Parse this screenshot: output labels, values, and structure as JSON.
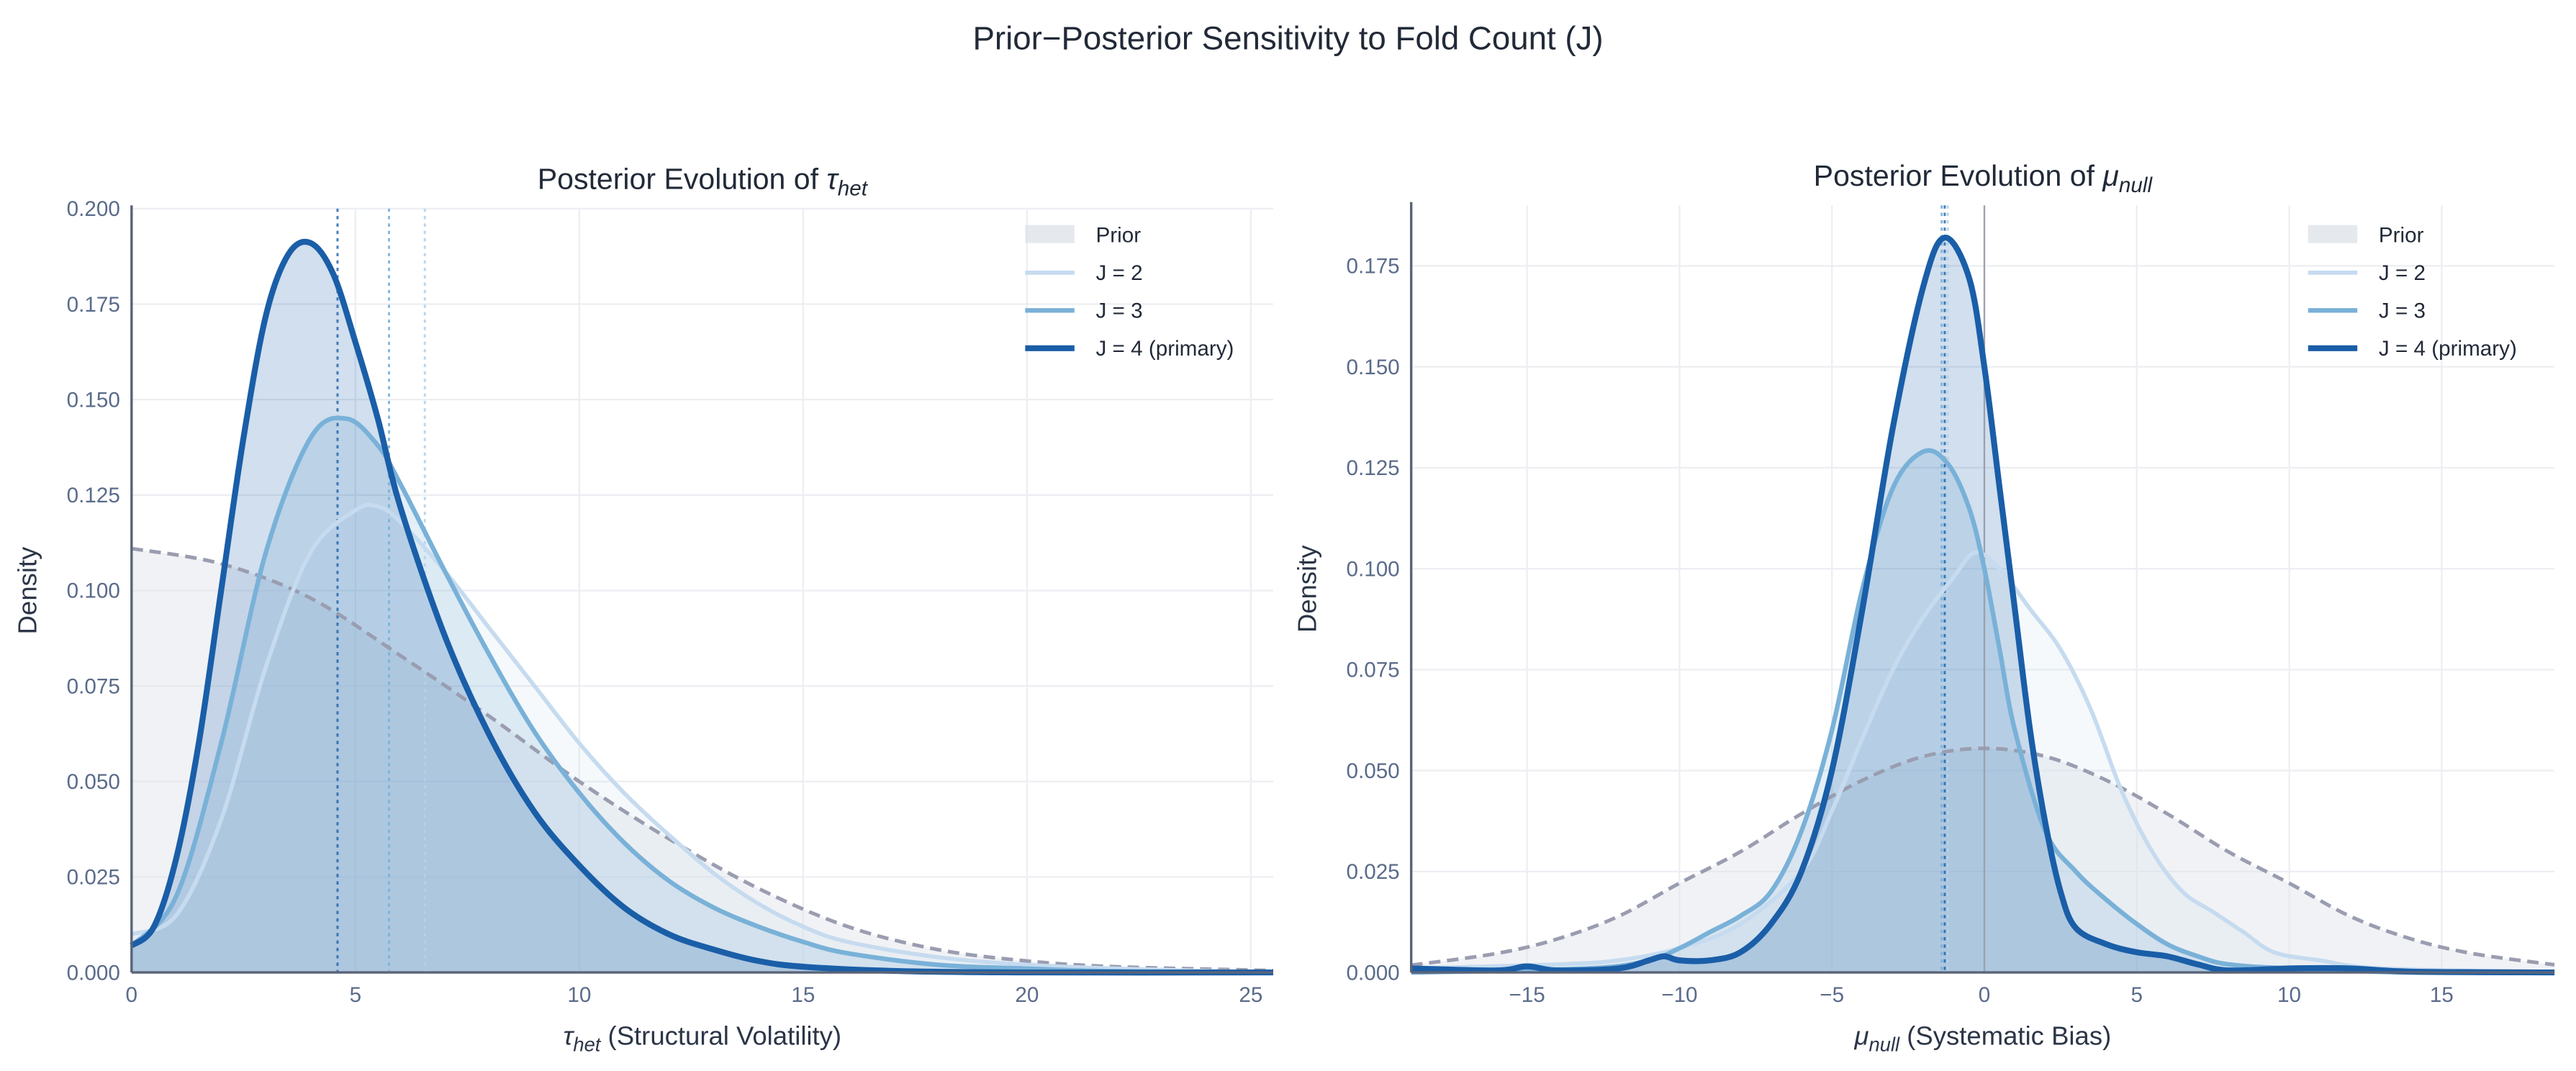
{
  "title": "Prior−Posterior Sensitivity to Fold Count (J)",
  "colors": {
    "prior_line": "#9a9db0",
    "prior_fill": "#dfe2e8",
    "J2": "#c6dbef",
    "J3": "#79b1d8",
    "J4": "#1a5ea8",
    "grid": "#eceef2",
    "spine": "#5a6478",
    "ref": "#9aa0ad"
  },
  "chart_data": [
    {
      "type": "line",
      "title_prefix": "Posterior Evolution of ",
      "title_symbol": "τ",
      "title_sub": "het",
      "xlabel_symbol": "τ",
      "xlabel_sub": "het",
      "xlabel_rest": " (Structural Volatility)",
      "ylabel": "Density",
      "xlim": [
        0,
        25.5
      ],
      "ylim": [
        0,
        0.2
      ],
      "xticks": [
        "0",
        "5",
        "10",
        "15",
        "20",
        "25"
      ],
      "xtick_values": [
        0,
        5,
        10,
        15,
        20,
        25
      ],
      "yticks": [
        "0.000",
        "0.025",
        "0.050",
        "0.075",
        "0.100",
        "0.125",
        "0.150",
        "0.175",
        "0.200"
      ],
      "ytick_values": [
        0,
        0.025,
        0.05,
        0.075,
        0.1,
        0.125,
        0.15,
        0.175,
        0.2
      ],
      "grid": true,
      "legend_position": "top-right",
      "legend": [
        "Prior",
        "J = 2",
        "J = 3",
        "J = 4 (primary)"
      ],
      "prior": [
        [
          0,
          0.111
        ],
        [
          2,
          0.107
        ],
        [
          4,
          0.098
        ],
        [
          6,
          0.083
        ],
        [
          8,
          0.067
        ],
        [
          10,
          0.05
        ],
        [
          12,
          0.035
        ],
        [
          14,
          0.022
        ],
        [
          16,
          0.012
        ],
        [
          18,
          0.006
        ],
        [
          20,
          0.003
        ],
        [
          22,
          0.0015
        ],
        [
          25.5,
          0.0005
        ]
      ],
      "series": [
        {
          "name": "J = 2",
          "key": "J2",
          "median": 6.55,
          "points": [
            [
              0,
              0.01
            ],
            [
              1,
              0.015
            ],
            [
              2,
              0.04
            ],
            [
              3,
              0.08
            ],
            [
              4,
              0.11
            ],
            [
              5,
              0.121
            ],
            [
              5.5,
              0.122
            ],
            [
              6,
              0.118
            ],
            [
              7,
              0.105
            ],
            [
              8,
              0.09
            ],
            [
              9,
              0.075
            ],
            [
              10,
              0.06
            ],
            [
              11,
              0.047
            ],
            [
              12,
              0.036
            ],
            [
              13,
              0.026
            ],
            [
              14,
              0.018
            ],
            [
              15,
              0.012
            ],
            [
              16,
              0.008
            ],
            [
              18,
              0.004
            ],
            [
              20,
              0.002
            ],
            [
              22,
              0.001
            ],
            [
              25.5,
              0
            ]
          ]
        },
        {
          "name": "J = 3",
          "key": "J3",
          "median": 5.75,
          "points": [
            [
              0,
              0.007
            ],
            [
              1,
              0.02
            ],
            [
              2,
              0.06
            ],
            [
              3,
              0.11
            ],
            [
              4,
              0.14
            ],
            [
              4.8,
              0.145
            ],
            [
              5.5,
              0.138
            ],
            [
              6,
              0.128
            ],
            [
              7,
              0.105
            ],
            [
              8,
              0.083
            ],
            [
              9,
              0.063
            ],
            [
              10,
              0.047
            ],
            [
              11,
              0.034
            ],
            [
              12,
              0.024
            ],
            [
              13,
              0.017
            ],
            [
              14,
              0.012
            ],
            [
              15,
              0.008
            ],
            [
              16,
              0.005
            ],
            [
              18,
              0.002
            ],
            [
              20,
              0.001
            ],
            [
              22,
              0.0003
            ],
            [
              25.5,
              0
            ]
          ]
        },
        {
          "name": "J = 4 (primary)",
          "key": "J4",
          "median": 4.6,
          "points": [
            [
              0,
              0.007
            ],
            [
              0.5,
              0.012
            ],
            [
              1,
              0.03
            ],
            [
              1.5,
              0.06
            ],
            [
              2,
              0.1
            ],
            [
              2.5,
              0.14
            ],
            [
              3,
              0.172
            ],
            [
              3.5,
              0.188
            ],
            [
              4,
              0.191
            ],
            [
              4.5,
              0.183
            ],
            [
              5,
              0.165
            ],
            [
              5.5,
              0.145
            ],
            [
              6,
              0.122
            ],
            [
              7,
              0.088
            ],
            [
              8,
              0.062
            ],
            [
              9,
              0.042
            ],
            [
              10,
              0.028
            ],
            [
              11,
              0.017
            ],
            [
              12,
              0.01
            ],
            [
              13,
              0.006
            ],
            [
              14,
              0.003
            ],
            [
              15,
              0.0015
            ],
            [
              17,
              0.0004
            ],
            [
              20,
              0
            ],
            [
              25.5,
              0
            ]
          ]
        }
      ],
      "reference_line": null
    },
    {
      "type": "line",
      "title_prefix": "Posterior Evolution of ",
      "title_symbol": "μ",
      "title_sub": "null",
      "xlabel_symbol": "μ",
      "xlabel_sub": "null",
      "xlabel_rest": " (Systematic Bias)",
      "ylabel": "Density",
      "xlim": [
        -18.8,
        18.7
      ],
      "ylim": [
        0,
        0.19
      ],
      "xticks": [
        "−15",
        "−10",
        "−5",
        "0",
        "5",
        "10",
        "15"
      ],
      "xtick_values": [
        -15,
        -10,
        -5,
        0,
        5,
        10,
        15
      ],
      "yticks": [
        "0.000",
        "0.025",
        "0.050",
        "0.075",
        "0.100",
        "0.125",
        "0.150",
        "0.175"
      ],
      "ytick_values": [
        0,
        0.025,
        0.05,
        0.075,
        0.1,
        0.125,
        0.15,
        0.175
      ],
      "grid": true,
      "legend_position": "top-right",
      "legend": [
        "Prior",
        "J = 2",
        "J = 3",
        "J = 4 (primary)"
      ],
      "prior": [
        [
          -18.8,
          0.0018
        ],
        [
          -16,
          0.0047
        ],
        [
          -14,
          0.0083
        ],
        [
          -12,
          0.0139
        ],
        [
          -10,
          0.0221
        ],
        [
          -8,
          0.0299
        ],
        [
          -6,
          0.0393
        ],
        [
          -4,
          0.0476
        ],
        [
          -2,
          0.0535
        ],
        [
          0,
          0.0555
        ],
        [
          2,
          0.0535
        ],
        [
          4,
          0.0476
        ],
        [
          6,
          0.0393
        ],
        [
          8,
          0.0299
        ],
        [
          10,
          0.0221
        ],
        [
          12,
          0.0139
        ],
        [
          14,
          0.0083
        ],
        [
          16,
          0.0047
        ],
        [
          18.7,
          0.0019
        ]
      ],
      "series": [
        {
          "name": "J = 2",
          "key": "J2",
          "median": -1.2,
          "points": [
            [
              -18.8,
              0.001
            ],
            [
              -14,
              0.002
            ],
            [
              -12,
              0.003
            ],
            [
              -10,
              0.006
            ],
            [
              -8,
              0.012
            ],
            [
              -6,
              0.025
            ],
            [
              -5,
              0.04
            ],
            [
              -4,
              0.058
            ],
            [
              -3,
              0.075
            ],
            [
              -2,
              0.088
            ],
            [
              -1,
              0.098
            ],
            [
              -0.3,
              0.104
            ],
            [
              0.5,
              0.1
            ],
            [
              1.5,
              0.09
            ],
            [
              2.5,
              0.08
            ],
            [
              3.5,
              0.065
            ],
            [
              4.5,
              0.045
            ],
            [
              5.5,
              0.03
            ],
            [
              6.5,
              0.02
            ],
            [
              7.5,
              0.015
            ],
            [
              8.5,
              0.01
            ],
            [
              9.5,
              0.005
            ],
            [
              11,
              0.003
            ],
            [
              13,
              0.001
            ],
            [
              18.7,
              0
            ]
          ]
        },
        {
          "name": "J = 3",
          "key": "J3",
          "median": -1.4,
          "points": [
            [
              -18.8,
              0
            ],
            [
              -13,
              0.001
            ],
            [
              -11,
              0.003
            ],
            [
              -10,
              0.006
            ],
            [
              -9,
              0.01
            ],
            [
              -8,
              0.014
            ],
            [
              -7,
              0.02
            ],
            [
              -6,
              0.035
            ],
            [
              -5,
              0.06
            ],
            [
              -4,
              0.095
            ],
            [
              -3,
              0.12
            ],
            [
              -2,
              0.129
            ],
            [
              -1.2,
              0.126
            ],
            [
              -0.5,
              0.115
            ],
            [
              0,
              0.1
            ],
            [
              0.5,
              0.08
            ],
            [
              1,
              0.06
            ],
            [
              2,
              0.035
            ],
            [
              3,
              0.025
            ],
            [
              4,
              0.018
            ],
            [
              5,
              0.012
            ],
            [
              6,
              0.007
            ],
            [
              7,
              0.004
            ],
            [
              8,
              0.002
            ],
            [
              10,
              0.001
            ],
            [
              14,
              0
            ],
            [
              18.7,
              0
            ]
          ]
        },
        {
          "name": "J = 4 (primary)",
          "key": "J4",
          "median": -1.3,
          "points": [
            [
              -18.8,
              0.001
            ],
            [
              -16,
              0.0005
            ],
            [
              -15,
              0.0015
            ],
            [
              -14,
              0.0005
            ],
            [
              -12,
              0.001
            ],
            [
              -11,
              0.003
            ],
            [
              -10.5,
              0.004
            ],
            [
              -10,
              0.003
            ],
            [
              -9,
              0.003
            ],
            [
              -8,
              0.005
            ],
            [
              -7,
              0.012
            ],
            [
              -6,
              0.025
            ],
            [
              -5,
              0.05
            ],
            [
              -4,
              0.09
            ],
            [
              -3,
              0.135
            ],
            [
              -2,
              0.17
            ],
            [
              -1.3,
              0.182
            ],
            [
              -0.5,
              0.172
            ],
            [
              0,
              0.15
            ],
            [
              0.5,
              0.12
            ],
            [
              1,
              0.09
            ],
            [
              1.5,
              0.06
            ],
            [
              2,
              0.037
            ],
            [
              2.5,
              0.02
            ],
            [
              3,
              0.011
            ],
            [
              4,
              0.007
            ],
            [
              5,
              0.005
            ],
            [
              6,
              0.004
            ],
            [
              7,
              0.002
            ],
            [
              8,
              0.0005
            ],
            [
              10,
              0.001
            ],
            [
              12,
              0.001
            ],
            [
              14,
              0.0002
            ],
            [
              18.7,
              0
            ]
          ]
        }
      ],
      "reference_line": 0
    }
  ]
}
